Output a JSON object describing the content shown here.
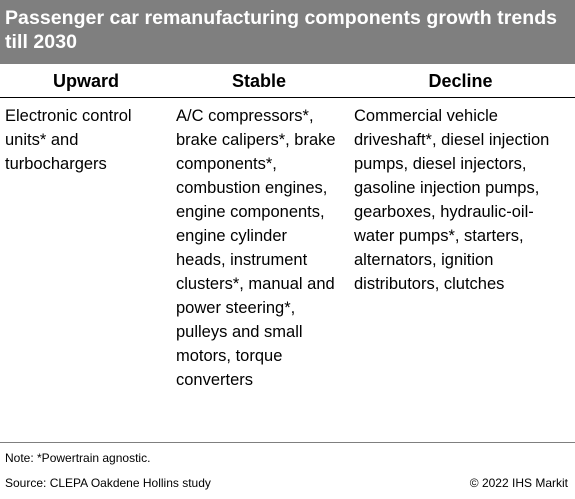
{
  "title": "Passenger car remanufacturing components growth trends till 2030",
  "columns": {
    "upward": {
      "heading": "Upward",
      "content": "Electronic control units* and turbochargers"
    },
    "stable": {
      "heading": "Stable",
      "content": "A/C compressors*, brake calipers*, brake components*, combustion engines, engine components, engine cylinder heads, instrument clusters*, manual and power steering*, pulleys and small motors, torque converters"
    },
    "decline": {
      "heading": "Decline",
      "content": "Commercial vehicle driveshaft*, diesel injection pumps, diesel injectors, gasoline injection pumps, gearboxes, hydraulic-oil-water pumps*, starters, alternators, ignition distributors, clutches"
    }
  },
  "footer": {
    "note": "Note: *Powertrain  agnostic.",
    "source": "Source: CLEPA Oakdene  Hollins study",
    "copyright": "© 2022 IHS Markit"
  },
  "colors": {
    "title_background": "#7f7f7f",
    "title_text": "#ffffff",
    "rule": "#000000"
  }
}
